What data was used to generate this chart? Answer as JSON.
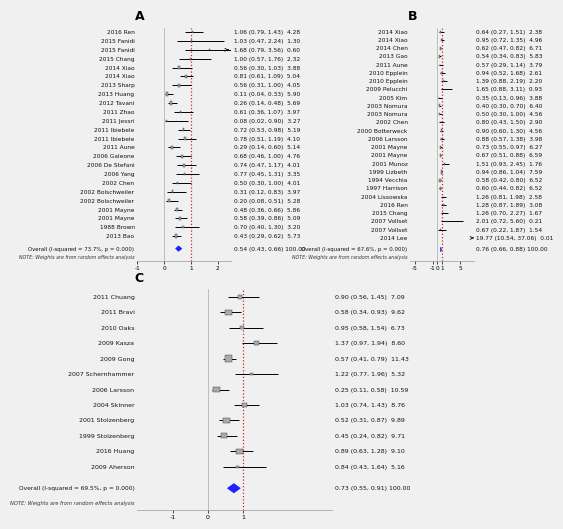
{
  "panel_A": {
    "label": "A",
    "studies": [
      {
        "name": "2016 Ren",
        "es": 1.06,
        "lo": 0.79,
        "hi": 1.43,
        "wt": 4.28
      },
      {
        "name": "2015 Fanidi",
        "es": 1.03,
        "lo": 0.47,
        "hi": 2.24,
        "wt": 1.3
      },
      {
        "name": "2015 Fanidi",
        "es": 1.68,
        "lo": 0.79,
        "hi": 3.56,
        "wt": 0.6
      },
      {
        "name": "2015 Chang",
        "es": 1.0,
        "lo": 0.57,
        "hi": 1.76,
        "wt": 2.32
      },
      {
        "name": "2014 Xiao",
        "es": 0.56,
        "lo": 0.3,
        "hi": 1.03,
        "wt": 3.88
      },
      {
        "name": "2014 Xiao",
        "es": 0.81,
        "lo": 0.61,
        "hi": 1.09,
        "wt": 5.04
      },
      {
        "name": "2013 Sharp",
        "es": 0.56,
        "lo": 0.31,
        "hi": 1.0,
        "wt": 4.05
      },
      {
        "name": "2013 Huang",
        "es": 0.11,
        "lo": 0.04,
        "hi": 0.33,
        "wt": 5.9
      },
      {
        "name": "2012 Tavani",
        "es": 0.26,
        "lo": 0.14,
        "hi": 0.48,
        "wt": 5.69
      },
      {
        "name": "2011 Zhao",
        "es": 0.61,
        "lo": 0.36,
        "hi": 1.07,
        "wt": 3.97
      },
      {
        "name": "2011 Jessri",
        "es": 0.08,
        "lo": 0.02,
        "hi": 0.9,
        "wt": 3.27
      },
      {
        "name": "2011 Ibiebele",
        "es": 0.72,
        "lo": 0.53,
        "hi": 0.98,
        "wt": 5.19
      },
      {
        "name": "2011 Ibiebele",
        "es": 0.78,
        "lo": 0.51,
        "hi": 1.19,
        "wt": 4.1
      },
      {
        "name": "2011 Aune",
        "es": 0.29,
        "lo": 0.14,
        "hi": 0.6,
        "wt": 5.14
      },
      {
        "name": "2006 Galeone",
        "es": 0.68,
        "lo": 0.46,
        "hi": 1.0,
        "wt": 4.76
      },
      {
        "name": "2006 De Stefani",
        "es": 0.74,
        "lo": 0.47,
        "hi": 1.17,
        "wt": 4.01
      },
      {
        "name": "2006 Yang",
        "es": 0.77,
        "lo": 0.45,
        "hi": 1.31,
        "wt": 3.35
      },
      {
        "name": "2002 Chen",
        "es": 0.5,
        "lo": 0.3,
        "hi": 1.0,
        "wt": 4.01
      },
      {
        "name": "2002 Bolschweiler",
        "es": 0.31,
        "lo": 0.12,
        "hi": 0.83,
        "wt": 3.97
      },
      {
        "name": "2002 Bolschweiler",
        "es": 0.2,
        "lo": 0.08,
        "hi": 0.51,
        "wt": 5.28
      },
      {
        "name": "2001 Mayne",
        "es": 0.48,
        "lo": 0.36,
        "hi": 0.66,
        "wt": 5.86
      },
      {
        "name": "2001 Mayne",
        "es": 0.58,
        "lo": 0.39,
        "hi": 0.86,
        "wt": 5.09
      },
      {
        "name": "1988 Brown",
        "es": 0.7,
        "lo": 0.4,
        "hi": 1.3,
        "wt": 3.2
      },
      {
        "name": "2013 Bao",
        "es": 0.43,
        "lo": 0.29,
        "hi": 0.62,
        "wt": 5.73
      }
    ],
    "overall_es": 0.54,
    "overall_lo": 0.43,
    "overall_hi": 0.66,
    "overall_text": "Overall (I-squared = 73.7%, p = 0.000)",
    "overall_stats": "0.54 (0.43, 0.66) 100.00",
    "note": "NOTE: Weights are from random effects analysis",
    "xmin": -1.0,
    "xmax": 2.5,
    "xticks": [
      -1,
      0,
      1,
      2
    ],
    "xticklabels": [
      "-1",
      "0",
      "1",
      "2"
    ],
    "ref": 1.0
  },
  "panel_B": {
    "label": "B",
    "studies": [
      {
        "name": "2014 Xiao",
        "es": 0.64,
        "lo": 0.27,
        "hi": 1.51,
        "wt": 2.38
      },
      {
        "name": "2014 Xiao",
        "es": 0.95,
        "lo": 0.72,
        "hi": 1.35,
        "wt": 4.96
      },
      {
        "name": "2014 Chen",
        "es": 0.62,
        "lo": 0.47,
        "hi": 0.82,
        "wt": 6.71
      },
      {
        "name": "2013 Gao",
        "es": 0.54,
        "lo": 0.34,
        "hi": 0.83,
        "wt": 5.83
      },
      {
        "name": "2011 Aune",
        "es": 0.57,
        "lo": 0.29,
        "hi": 1.14,
        "wt": 3.79
      },
      {
        "name": "2010 Epplein",
        "es": 0.94,
        "lo": 0.52,
        "hi": 1.68,
        "wt": 2.61
      },
      {
        "name": "2010 Epplein",
        "es": 1.39,
        "lo": 0.88,
        "hi": 2.19,
        "wt": 2.2
      },
      {
        "name": "2009 Pelucchi",
        "es": 1.65,
        "lo": 0.88,
        "hi": 3.11,
        "wt": 0.93
      },
      {
        "name": "2005 Kim",
        "es": 0.35,
        "lo": 0.13,
        "hi": 0.96,
        "wt": 3.88
      },
      {
        "name": "2003 Nomura",
        "es": 0.4,
        "lo": 0.3,
        "hi": 0.7,
        "wt": 6.4
      },
      {
        "name": "2003 Nomura",
        "es": 0.5,
        "lo": 0.3,
        "hi": 1.0,
        "wt": 4.56
      },
      {
        "name": "2002 Chen",
        "es": 0.8,
        "lo": 0.43,
        "hi": 1.5,
        "wt": 2.9
      },
      {
        "name": "2000 Botterweck",
        "es": 0.9,
        "lo": 0.6,
        "hi": 1.3,
        "wt": 4.56
      },
      {
        "name": "2006 Larsson",
        "es": 0.88,
        "lo": 0.57,
        "hi": 1.38,
        "wt": 3.98
      },
      {
        "name": "2001 Mayne",
        "es": 0.73,
        "lo": 0.55,
        "hi": 0.97,
        "wt": 6.27
      },
      {
        "name": "2001 Mayne",
        "es": 0.67,
        "lo": 0.51,
        "hi": 0.88,
        "wt": 6.59
      },
      {
        "name": "2001 Munoz",
        "es": 1.51,
        "lo": 0.93,
        "hi": 2.45,
        "wt": 1.76
      },
      {
        "name": "1999 Lizbeth",
        "es": 0.94,
        "lo": 0.86,
        "hi": 1.04,
        "wt": 7.59
      },
      {
        "name": "1994 Vecchia",
        "es": 0.58,
        "lo": 0.42,
        "hi": 0.8,
        "wt": 6.52
      },
      {
        "name": "1997 Harrison",
        "es": 0.6,
        "lo": 0.44,
        "hi": 0.82,
        "wt": 6.52
      },
      {
        "name": "2004 Lissowska",
        "es": 1.26,
        "lo": 0.81,
        "hi": 1.98,
        "wt": 2.58
      },
      {
        "name": "2016 Ren",
        "es": 1.28,
        "lo": 0.87,
        "hi": 1.89,
        "wt": 3.08
      },
      {
        "name": "2015 Chang",
        "es": 1.26,
        "lo": 0.7,
        "hi": 2.27,
        "wt": 1.67
      },
      {
        "name": "2007 Vollset",
        "es": 2.01,
        "lo": 0.72,
        "hi": 5.6,
        "wt": 0.21
      },
      {
        "name": "2007 Vollset",
        "es": 0.67,
        "lo": 0.22,
        "hi": 1.87,
        "wt": 1.54
      },
      {
        "name": "2014 Lee",
        "es": 19.77,
        "lo": 10.54,
        "hi": 37.06,
        "wt": 0.01
      }
    ],
    "overall_es": 0.76,
    "overall_lo": 0.66,
    "overall_hi": 0.88,
    "overall_text": "Overall (I-squared = 67.6%, p = 0.000)",
    "overall_stats": "0.76 (0.66, 0.88) 100.00",
    "note": "NOTE: Weights are from random effects analysis",
    "xmin": -6.0,
    "xmax": 8.0,
    "xticks": [
      -5,
      -1,
      0,
      1,
      5
    ],
    "xticklabels": [
      "-5",
      "-1",
      "0",
      "1",
      "5"
    ],
    "ref": 1.0
  },
  "panel_C": {
    "label": "C",
    "studies": [
      {
        "name": "2011 Chuang",
        "es": 0.9,
        "lo": 0.56,
        "hi": 1.45,
        "wt": 7.09
      },
      {
        "name": "2011 Bravi",
        "es": 0.58,
        "lo": 0.34,
        "hi": 0.93,
        "wt": 9.62
      },
      {
        "name": "2010 Oaks",
        "es": 0.95,
        "lo": 0.58,
        "hi": 1.54,
        "wt": 6.73
      },
      {
        "name": "2009 Kasza",
        "es": 1.37,
        "lo": 0.97,
        "hi": 1.94,
        "wt": 8.6
      },
      {
        "name": "2009 Gong",
        "es": 0.57,
        "lo": 0.41,
        "hi": 0.79,
        "wt": 11.43
      },
      {
        "name": "2007 Schernhammer",
        "es": 1.22,
        "lo": 0.77,
        "hi": 1.96,
        "wt": 5.32
      },
      {
        "name": "2006 Larsson",
        "es": 0.25,
        "lo": 0.11,
        "hi": 0.58,
        "wt": 10.59
      },
      {
        "name": "2004 Skinner",
        "es": 1.03,
        "lo": 0.74,
        "hi": 1.43,
        "wt": 8.76
      },
      {
        "name": "2001 Stolzenberg",
        "es": 0.52,
        "lo": 0.31,
        "hi": 0.87,
        "wt": 9.89
      },
      {
        "name": "1999 Stolzenberg",
        "es": 0.45,
        "lo": 0.24,
        "hi": 0.82,
        "wt": 9.71
      },
      {
        "name": "2016 Huang",
        "es": 0.89,
        "lo": 0.63,
        "hi": 1.28,
        "wt": 9.1
      },
      {
        "name": "2009 Aherson",
        "es": 0.84,
        "lo": 0.43,
        "hi": 1.64,
        "wt": 5.16
      }
    ],
    "overall_es": 0.73,
    "overall_lo": 0.55,
    "overall_hi": 0.91,
    "overall_text": "Overall (I-squared = 69.5%, p = 0.000)",
    "overall_stats": "0.73 (0.55, 0.91) 100.00",
    "note": "NOTE: Weights are from random effects analysis",
    "xmin": -2.0,
    "xmax": 3.5,
    "xticks": [
      -1,
      0,
      1
    ],
    "xticklabels": [
      "-1",
      "0",
      "1"
    ],
    "ref": 1.0
  },
  "fig_bg": "#f0f0f0",
  "panel_bg": "#f0f0f0",
  "box_fc": "#aaaaaa",
  "box_ec": "#333333",
  "diamond_color": "#1f1fff",
  "ref_color": "#cc0000",
  "ci_color": "#000000"
}
